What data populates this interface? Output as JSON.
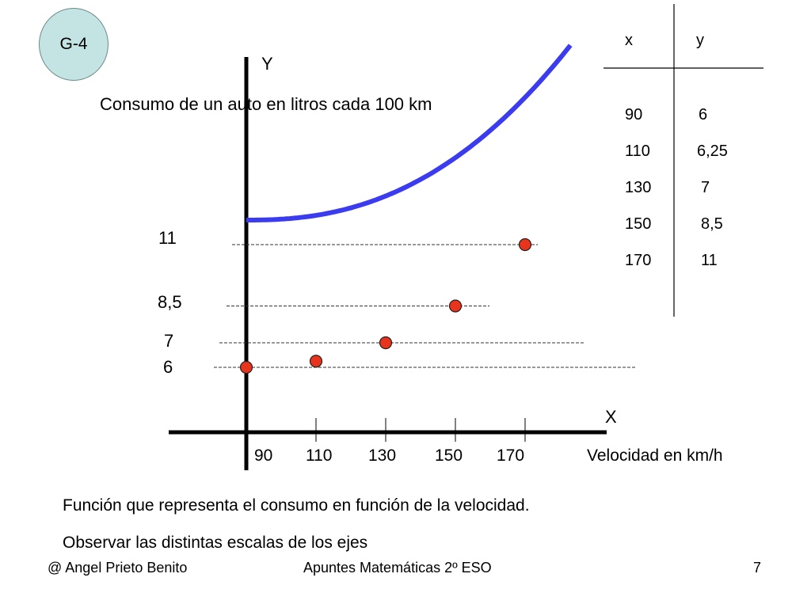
{
  "badge": "G-4",
  "title": "Consumo de un auto en litros cada 100 km",
  "table": {
    "header": [
      "x",
      "y"
    ],
    "rows": [
      [
        "90",
        "6"
      ],
      [
        "110",
        "6,25"
      ],
      [
        "130",
        "7"
      ],
      [
        "150",
        "8,5"
      ],
      [
        "170",
        "11"
      ]
    ]
  },
  "chart_data": {
    "type": "line",
    "x": [
      90,
      110,
      130,
      150,
      170
    ],
    "y": [
      6,
      6.25,
      7,
      8.5,
      11
    ],
    "xlabel": "X",
    "ylabel": "Y",
    "x_axis_caption": "Velocidad en km/h",
    "xticks": [
      "90",
      "110",
      "130",
      "150",
      "170"
    ],
    "yticks": [
      "6",
      "7",
      "8,5",
      "11"
    ],
    "colors": {
      "curve": "#3b3bf0",
      "points": "#e8341c"
    }
  },
  "notes": [
    "Función que representa el consumo en función de la velocidad.",
    "Observar las distintas escalas de los ejes"
  ],
  "footer": {
    "author": "@ Angel Prieto Benito",
    "course": "Apuntes Matemáticas 2º ESO",
    "page": "7"
  }
}
